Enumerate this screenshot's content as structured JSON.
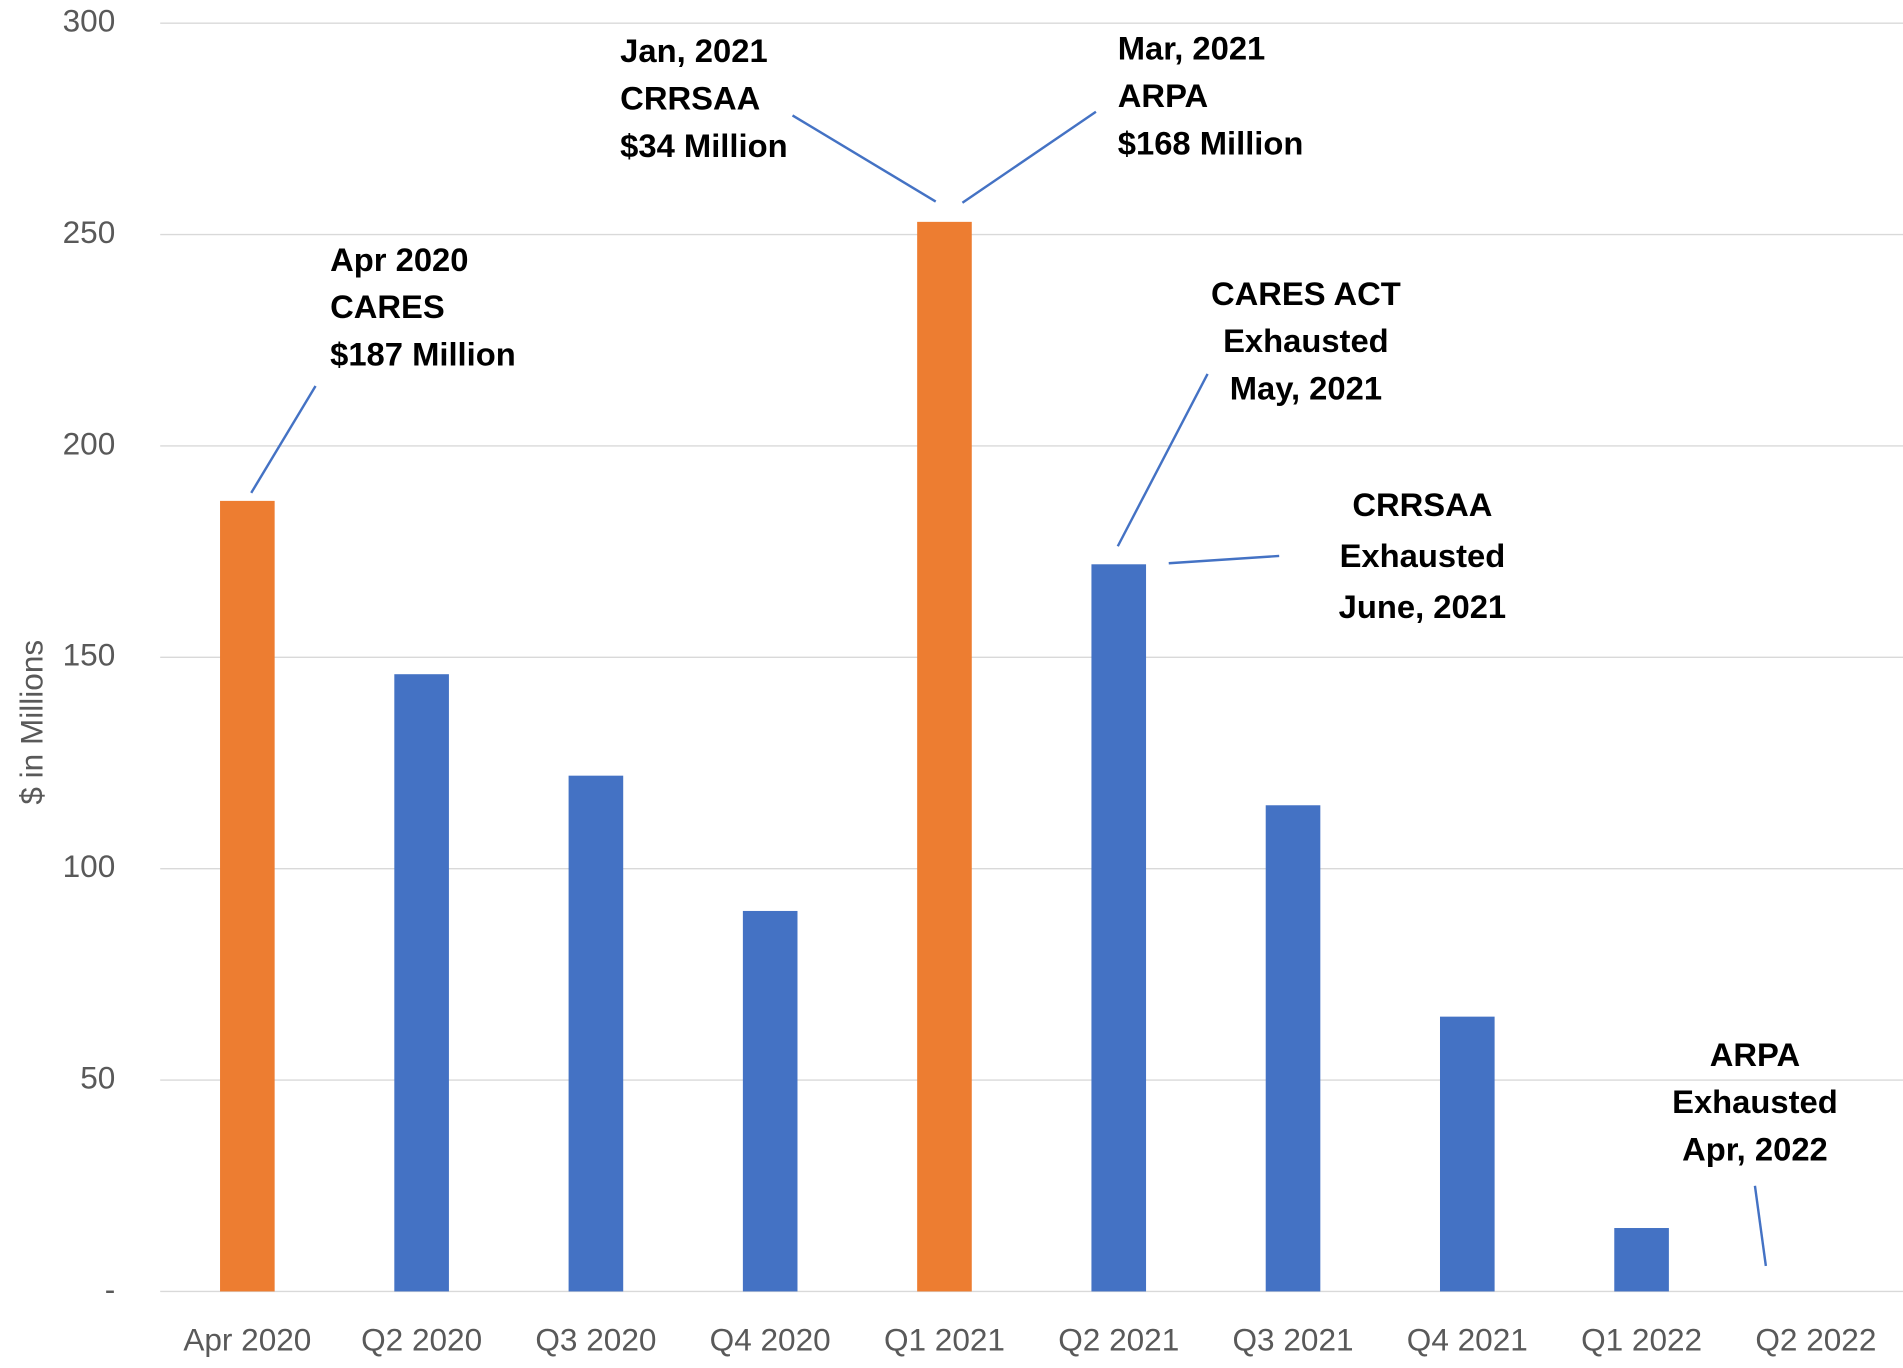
{
  "chart_data": {
    "type": "bar",
    "y_label": "$ in Millions",
    "categories": [
      "Apr 2020",
      "Q2 2020",
      "Q3 2020",
      "Q4 2020",
      "Q1 2021",
      "Q2 2021",
      "Q3 2021",
      "Q4 2021",
      "Q1 2022",
      "Q2 2022"
    ],
    "values": [
      187,
      146,
      122,
      90,
      253,
      172,
      115,
      65,
      15,
      0
    ],
    "colors": [
      "#ED7D31",
      "#4472C4",
      "#4472C4",
      "#4472C4",
      "#ED7D31",
      "#4472C4",
      "#4472C4",
      "#4472C4",
      "#4472C4",
      "#4472C4"
    ],
    "ylim": [
      0,
      300
    ],
    "yticks": [
      {
        "value": 0,
        "label": "-"
      },
      50,
      100,
      150,
      200,
      250,
      300
    ],
    "grid": true,
    "annotations": [
      {
        "lines": [
          "Apr 2020",
          "CARES",
          "$187 Million"
        ]
      },
      {
        "lines": [
          "Jan, 2021",
          "CRRSAA",
          "$34 Million"
        ]
      },
      {
        "lines": [
          "Mar, 2021",
          "ARPA",
          "$168 Million"
        ]
      },
      {
        "lines": [
          "CARES ACT",
          "Exhausted",
          "May, 2021"
        ]
      },
      {
        "lines": [
          "CRRSAA",
          "Exhausted",
          "June, 2021"
        ]
      },
      {
        "lines": [
          "ARPA",
          "Exhausted",
          "Apr, 2022"
        ]
      }
    ]
  }
}
